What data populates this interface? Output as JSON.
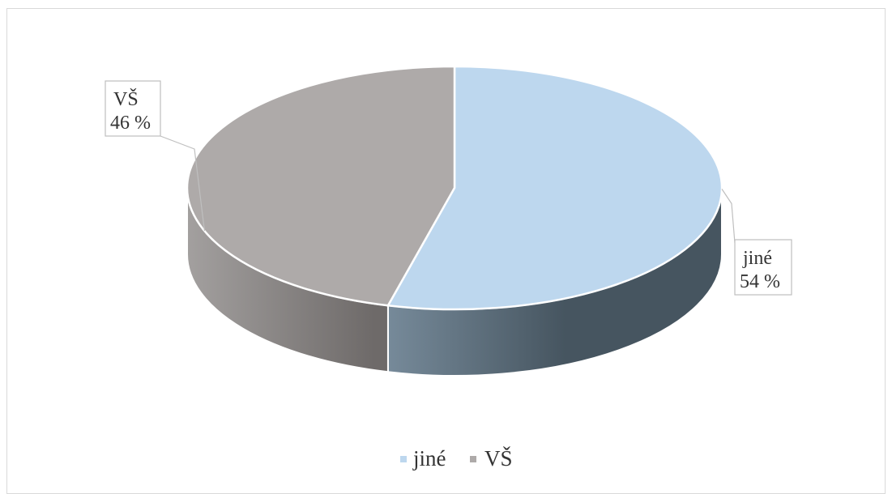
{
  "chart_data": {
    "type": "pie",
    "style": "3d",
    "slices": [
      {
        "label": "jiné",
        "value": 54,
        "value_label": "54 %",
        "top_color": "#bdd7ee",
        "side_dark": "#465560",
        "side_light": "#7a8e9e"
      },
      {
        "label": "VŠ",
        "value": 46,
        "value_label": "46 %",
        "top_color": "#aeaaa9",
        "side_dark": "#6e6a69",
        "side_light": "#a3a09f"
      }
    ],
    "legend": {
      "placement": "bottom",
      "entries": [
        "jiné",
        "VŠ"
      ]
    },
    "colors": {
      "edge": "#ffffff",
      "label_border": "#bfbfbf",
      "text": "#333333"
    }
  }
}
